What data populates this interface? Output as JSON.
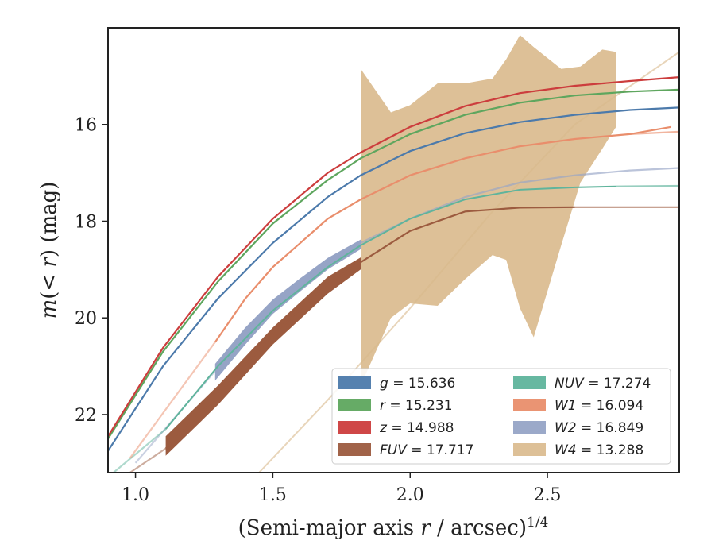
{
  "chart_data": {
    "type": "line",
    "xlabel": "(Semi-major axis r / arcsec)^{1/4}",
    "ylabel": "m(< r) (mag)",
    "xlim": [
      0.9,
      2.98
    ],
    "ylim": [
      23.2,
      14.0
    ],
    "xticks": [
      "1.0",
      "1.5",
      "2.0",
      "2.5"
    ],
    "xtick_values": [
      1.0,
      1.5,
      2.0,
      2.5
    ],
    "yticks": [
      "16",
      "18",
      "20",
      "22"
    ],
    "ytick_values": [
      16,
      18,
      20,
      22
    ],
    "legend_position": "lower-right",
    "legend_columns": 2,
    "series": [
      {
        "key": "g",
        "name": "g = 15.636",
        "label_var": "g",
        "label_val": "15.636",
        "color": "#4c7aab",
        "width": 2.2,
        "x": [
          0.9,
          1.1,
          1.3,
          1.5,
          1.7,
          1.82,
          2.0,
          2.2,
          2.4,
          2.6,
          2.8,
          2.98
        ],
        "y": [
          22.75,
          21.0,
          19.6,
          18.45,
          17.5,
          17.05,
          16.55,
          16.18,
          15.95,
          15.8,
          15.7,
          15.65
        ]
      },
      {
        "key": "r",
        "name": "r = 15.231",
        "label_var": "r",
        "label_val": "15.231",
        "color": "#5ea65e",
        "width": 2.2,
        "x": [
          0.9,
          1.1,
          1.3,
          1.5,
          1.7,
          1.82,
          2.0,
          2.2,
          2.4,
          2.6,
          2.8,
          2.98
        ],
        "y": [
          22.5,
          20.7,
          19.25,
          18.05,
          17.15,
          16.7,
          16.2,
          15.8,
          15.55,
          15.4,
          15.32,
          15.28
        ]
      },
      {
        "key": "z",
        "name": "z = 14.988",
        "label_var": "z",
        "label_val": "14.988",
        "color": "#cc3d3d",
        "width": 2.2,
        "x": [
          0.9,
          1.1,
          1.3,
          1.5,
          1.7,
          1.82,
          2.0,
          2.2,
          2.4,
          2.6,
          2.8,
          2.98
        ],
        "y": [
          22.45,
          20.62,
          19.15,
          17.95,
          17.0,
          16.58,
          16.05,
          15.62,
          15.35,
          15.2,
          15.1,
          15.02
        ]
      },
      {
        "key": "FUV",
        "name": "FUV = 17.717",
        "label_var": "FUV",
        "label_val": "17.717",
        "color": "#9c5b3f",
        "width": 2.2,
        "x": [
          1.11,
          1.3,
          1.5,
          1.7,
          1.82,
          2.0,
          2.2,
          2.4,
          2.6
        ],
        "y": [
          22.7,
          21.6,
          20.35,
          19.3,
          18.85,
          18.2,
          17.8,
          17.72,
          17.71
        ],
        "fade_x": [
          0.98,
          1.11
        ],
        "fade_y": [
          23.2,
          22.7
        ],
        "tail_x": [
          2.6,
          2.98
        ],
        "tail_y": [
          17.71,
          17.71
        ],
        "band_x": [
          1.11,
          1.3,
          1.5,
          1.7,
          1.82
        ],
        "band_upper": [
          22.45,
          21.4,
          20.2,
          19.15,
          18.75
        ],
        "band_lower": [
          22.85,
          21.8,
          20.55,
          19.5,
          19.0
        ]
      },
      {
        "key": "NUV",
        "name": "NUV = 17.274",
        "label_var": "NUV",
        "label_val": "17.274",
        "color": "#5fb49c",
        "width": 2.0,
        "x": [
          1.11,
          1.3,
          1.5,
          1.7,
          1.82,
          2.0,
          2.2,
          2.4,
          2.6,
          2.75
        ],
        "y": [
          22.3,
          21.0,
          19.85,
          18.95,
          18.5,
          17.95,
          17.55,
          17.35,
          17.3,
          17.28
        ],
        "fade_x": [
          0.92,
          1.11
        ],
        "fade_y": [
          23.2,
          22.3
        ],
        "tail_x": [
          2.75,
          2.98
        ],
        "tail_y": [
          17.28,
          17.27
        ]
      },
      {
        "key": "W1",
        "name": "W1 = 16.094",
        "label_var": "W1",
        "label_val": "16.094",
        "color": "#e98e6c",
        "width": 2.2,
        "x": [
          1.29,
          1.4,
          1.5,
          1.6,
          1.7,
          1.82,
          2.0,
          2.2,
          2.4,
          2.6,
          2.8,
          2.95
        ],
        "y": [
          20.5,
          19.6,
          18.95,
          18.45,
          17.95,
          17.55,
          17.05,
          16.7,
          16.45,
          16.3,
          16.2,
          16.05
        ],
        "fade_x": [
          0.98,
          1.29
        ],
        "fade_y": [
          22.9,
          20.5
        ],
        "tail_x": [
          2.8,
          2.98
        ],
        "tail_y": [
          16.2,
          16.15
        ]
      },
      {
        "key": "W2",
        "name": "W2 = 16.849",
        "label_var": "W2",
        "label_val": "16.849",
        "color": "#96a4c6",
        "width": 2.0,
        "x": [
          1.29,
          1.4,
          1.5,
          1.6,
          1.7,
          1.82
        ],
        "y": [
          21.1,
          20.35,
          19.75,
          19.3,
          18.85,
          18.45
        ],
        "fade_x": [
          1.0,
          1.29
        ],
        "fade_y": [
          23.0,
          21.1
        ],
        "tail_x": [
          1.82,
          2.0,
          2.2,
          2.4,
          2.6,
          2.8,
          2.98
        ],
        "tail_y": [
          18.45,
          17.95,
          17.5,
          17.2,
          17.05,
          16.95,
          16.9
        ],
        "band_x": [
          1.29,
          1.4,
          1.5,
          1.6,
          1.7,
          1.82
        ],
        "band_upper": [
          20.95,
          20.2,
          19.62,
          19.18,
          18.76,
          18.38
        ],
        "band_lower": [
          21.3,
          20.55,
          19.92,
          19.45,
          19.0,
          18.58
        ]
      },
      {
        "key": "W4",
        "name": "W4 = 13.288",
        "label_var": "W4",
        "label_val": "13.288",
        "color": "#d9b98c",
        "width": 2.0,
        "x": [],
        "y": [],
        "fade_x": [
          1.45,
          1.7,
          2.0,
          2.3,
          2.6,
          2.98
        ],
        "fade_y": [
          23.2,
          21.7,
          19.8,
          17.8,
          16.0,
          14.5
        ],
        "band_x": [
          1.82,
          1.93,
          2.0,
          2.1,
          2.2,
          2.3,
          2.35,
          2.4,
          2.45,
          2.55,
          2.62,
          2.7,
          2.75
        ],
        "band_upper": [
          14.85,
          15.75,
          15.6,
          15.15,
          15.15,
          15.05,
          14.65,
          14.15,
          14.4,
          14.85,
          14.8,
          14.45,
          14.5
        ],
        "band_lower": [
          21.4,
          20.0,
          19.7,
          19.75,
          19.2,
          18.7,
          18.8,
          19.8,
          20.4,
          18.5,
          17.2,
          16.5,
          16.05
        ]
      }
    ]
  }
}
